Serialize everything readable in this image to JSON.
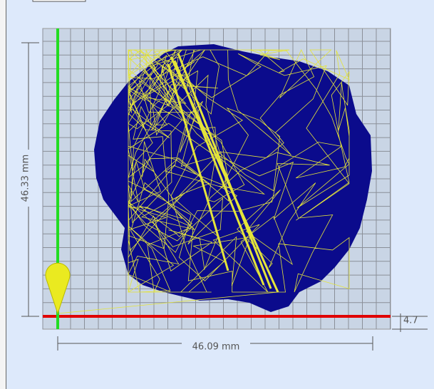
{
  "dimensions": {
    "height": "46.33 mm",
    "width": "46.09 mm",
    "depth": "4.7"
  }
}
